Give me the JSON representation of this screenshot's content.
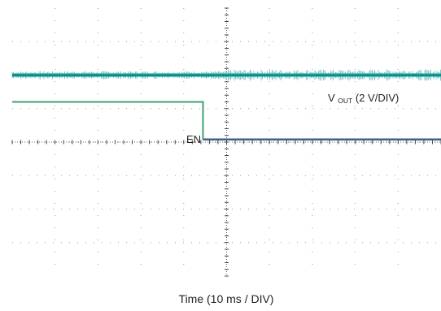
{
  "chart_data": {
    "type": "line",
    "xlabel": "Time (10 ms / DIV)",
    "x_unit": "ms",
    "x_per_div": 10,
    "xlim": [
      0,
      100
    ],
    "ylim": [
      -4,
      4
    ],
    "grid": "dotted",
    "series": [
      {
        "name": "VOUT (2 V/DIV)",
        "label_main": "V",
        "label_sub": "OUT",
        "label_rest": " (2 V/DIV)",
        "color": "#17b3b0",
        "x": [
          0,
          100
        ],
        "y": [
          2.0,
          2.0
        ]
      },
      {
        "name": "EN",
        "label_main": "EN",
        "color_high": "#3f9f72",
        "color_low": "#3f5f86",
        "x": [
          0,
          44.5,
          44.5,
          100
        ],
        "y": [
          1.2,
          1.2,
          0.08,
          0.08
        ]
      }
    ]
  }
}
